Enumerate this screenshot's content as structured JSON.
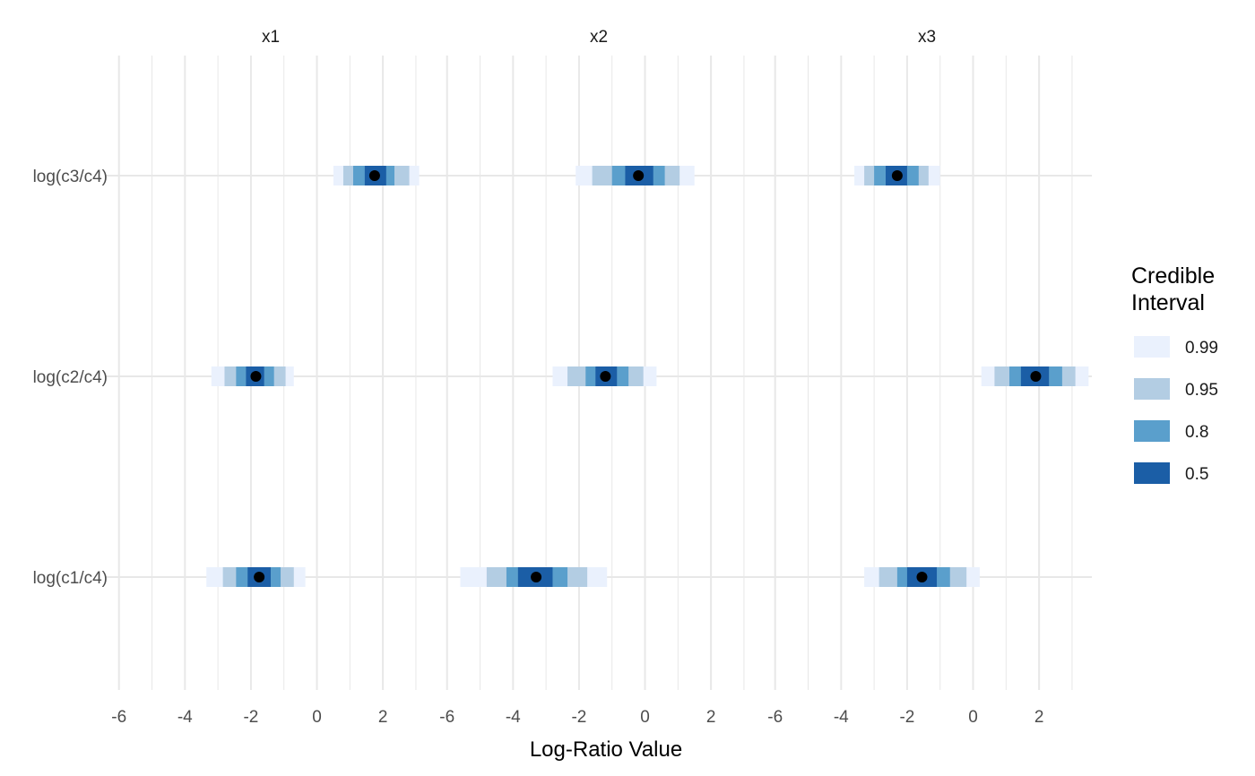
{
  "chart_data": {
    "type": "interval",
    "xlabel": "Log-Ratio Value",
    "ylabel": "",
    "xlim": [
      -6.4,
      3.6
    ],
    "x_ticks": [
      -6,
      -4,
      -2,
      0,
      2
    ],
    "x_tick_labels": [
      "-6",
      "-4",
      "-2",
      "0",
      "2"
    ],
    "grid": true,
    "categories": [
      "log(c3/c4)",
      "log(c2/c4)",
      "log(c1/c4)"
    ],
    "facets": [
      {
        "name": "x1",
        "rows": [
          {
            "category": "log(c3/c4)",
            "point": 1.75,
            "intervals": {
              "0.99": [
                0.5,
                3.1
              ],
              "0.95": [
                0.8,
                2.8
              ],
              "0.8": [
                1.1,
                2.35
              ],
              "0.5": [
                1.45,
                2.1
              ]
            }
          },
          {
            "category": "log(c2/c4)",
            "point": -1.85,
            "intervals": {
              "0.99": [
                -3.2,
                -0.7
              ],
              "0.95": [
                -2.8,
                -0.95
              ],
              "0.8": [
                -2.45,
                -1.3
              ],
              "0.5": [
                -2.15,
                -1.6
              ]
            }
          },
          {
            "category": "log(c1/c4)",
            "point": -1.75,
            "intervals": {
              "0.99": [
                -3.35,
                -0.35
              ],
              "0.95": [
                -2.85,
                -0.7
              ],
              "0.8": [
                -2.45,
                -1.1
              ],
              "0.5": [
                -2.1,
                -1.4
              ]
            }
          }
        ]
      },
      {
        "name": "x2",
        "rows": [
          {
            "category": "log(c3/c4)",
            "point": -0.2,
            "intervals": {
              "0.99": [
                -2.1,
                1.5
              ],
              "0.95": [
                -1.6,
                1.05
              ],
              "0.8": [
                -1.0,
                0.6
              ],
              "0.5": [
                -0.6,
                0.25
              ]
            }
          },
          {
            "category": "log(c2/c4)",
            "point": -1.2,
            "intervals": {
              "0.99": [
                -2.8,
                0.35
              ],
              "0.95": [
                -2.35,
                -0.05
              ],
              "0.8": [
                -1.8,
                -0.5
              ],
              "0.5": [
                -1.5,
                -0.85
              ]
            }
          },
          {
            "category": "log(c1/c4)",
            "point": -3.3,
            "intervals": {
              "0.99": [
                -5.6,
                -1.15
              ],
              "0.95": [
                -4.8,
                -1.75
              ],
              "0.8": [
                -4.2,
                -2.35
              ],
              "0.5": [
                -3.85,
                -2.8
              ]
            }
          }
        ]
      },
      {
        "name": "x3",
        "rows": [
          {
            "category": "log(c3/c4)",
            "point": -2.3,
            "intervals": {
              "0.99": [
                -3.6,
                -1.0
              ],
              "0.95": [
                -3.3,
                -1.35
              ],
              "0.8": [
                -3.0,
                -1.65
              ],
              "0.5": [
                -2.65,
                -2.0
              ]
            }
          },
          {
            "category": "log(c2/c4)",
            "point": 1.9,
            "intervals": {
              "0.99": [
                0.25,
                3.5
              ],
              "0.95": [
                0.65,
                3.1
              ],
              "0.8": [
                1.1,
                2.7
              ],
              "0.5": [
                1.45,
                2.3
              ]
            }
          },
          {
            "category": "log(c1/c4)",
            "point": -1.55,
            "intervals": {
              "0.99": [
                -3.3,
                0.2
              ],
              "0.95": [
                -2.85,
                -0.2
              ],
              "0.8": [
                -2.3,
                -0.7
              ],
              "0.5": [
                -2.0,
                -1.1
              ]
            }
          }
        ]
      }
    ],
    "legend": {
      "title_lines": [
        "Credible",
        "Interval"
      ],
      "placement": "right",
      "items": [
        {
          "label": "0.99",
          "color": "#eaf1fd"
        },
        {
          "label": "0.95",
          "color": "#b3cde3"
        },
        {
          "label": "0.8",
          "color": "#5a9fcc"
        },
        {
          "label": "0.5",
          "color": "#1b5ea6"
        }
      ]
    },
    "point_color": "#000000",
    "grid_color": "#e8e8e8"
  }
}
